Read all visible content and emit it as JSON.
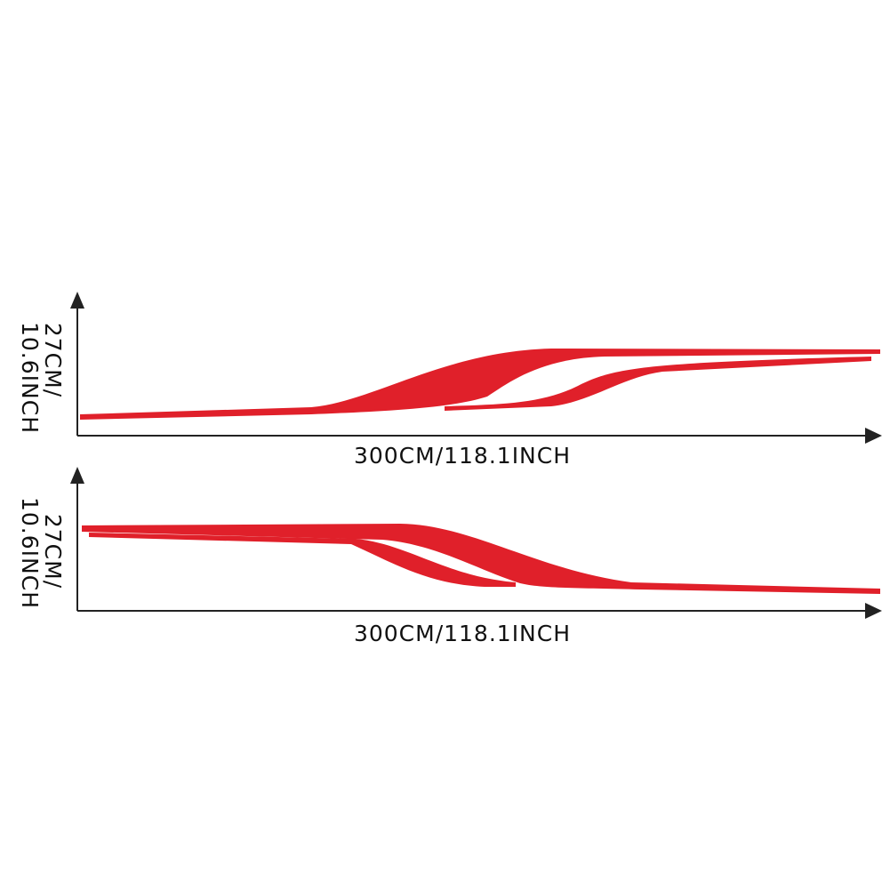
{
  "panels": [
    {
      "height_label": [
        "27CM/",
        "10.6INCH"
      ],
      "width_label": "300CM/118.1INCH"
    },
    {
      "height_label": [
        "27CM/",
        "10.6INCH"
      ],
      "width_label": "300CM/118.1INCH"
    }
  ]
}
